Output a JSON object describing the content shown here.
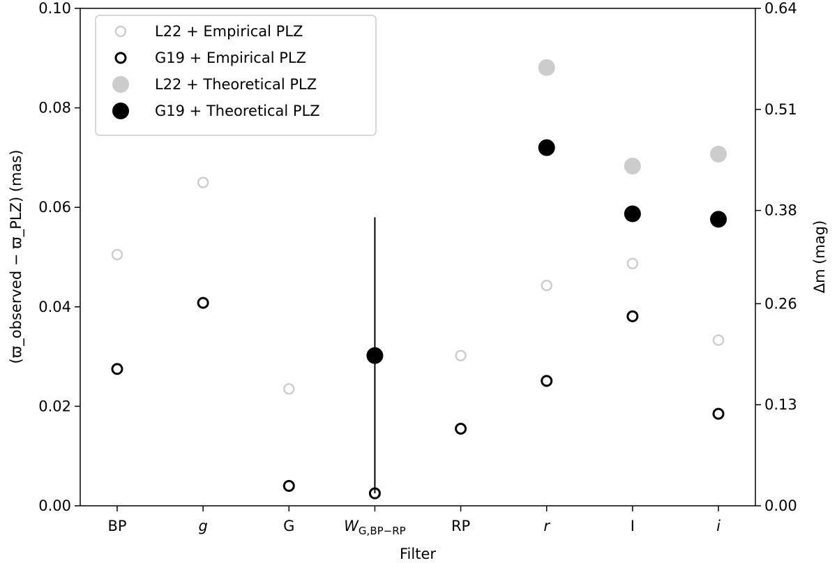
{
  "chart_data": {
    "type": "scatter",
    "xlabel": "Filter",
    "ylabel_left": "(ϖ_observed − ϖ_PLZ) (mas)",
    "ylabel_right": "Δm (mag)",
    "categories": [
      "BP",
      "g",
      "G",
      "W_G,BP−RP",
      "RP",
      "r",
      "I",
      "i"
    ],
    "left_axis": {
      "ylim": [
        0,
        0.1
      ],
      "ticks": [
        0.0,
        0.02,
        0.04,
        0.06,
        0.08,
        0.1
      ],
      "tick_labels": [
        "0.00",
        "0.02",
        "0.04",
        "0.06",
        "0.08",
        "0.10"
      ]
    },
    "right_axis": {
      "ylim": [
        0,
        0.64
      ],
      "ticks": [
        0.0,
        0.13,
        0.26,
        0.38,
        0.51,
        0.64
      ],
      "tick_labels": [
        "0.00",
        "0.13",
        "0.26",
        "0.38",
        "0.51",
        "0.64"
      ]
    },
    "series": [
      {
        "name": "L22 + Empirical PLZ",
        "marker": "open",
        "color": "#cccccc",
        "values": [
          0.0505,
          0.065,
          0.0235,
          null,
          0.0302,
          0.0443,
          0.0487,
          0.0333
        ]
      },
      {
        "name": "G19 + Empirical PLZ",
        "marker": "open",
        "color": "#000000",
        "values": [
          0.0275,
          0.0408,
          0.004,
          0.0025,
          0.0155,
          0.0251,
          0.0381,
          0.0185
        ]
      },
      {
        "name": "L22 + Theoretical PLZ",
        "marker": "filled",
        "color": "#cccccc",
        "values": [
          null,
          null,
          null,
          null,
          null,
          0.0881,
          0.0683,
          0.0707
        ]
      },
      {
        "name": "G19 + Theoretical PLZ",
        "marker": "filled",
        "color": "#000000",
        "values": [
          null,
          null,
          null,
          0.0302,
          null,
          0.072,
          0.0587,
          0.0576
        ]
      }
    ],
    "error_bar": {
      "category": "W_G,BP−RP",
      "low": 0.0025,
      "high": 0.058
    },
    "grid": false,
    "legend_position": "top-left"
  }
}
